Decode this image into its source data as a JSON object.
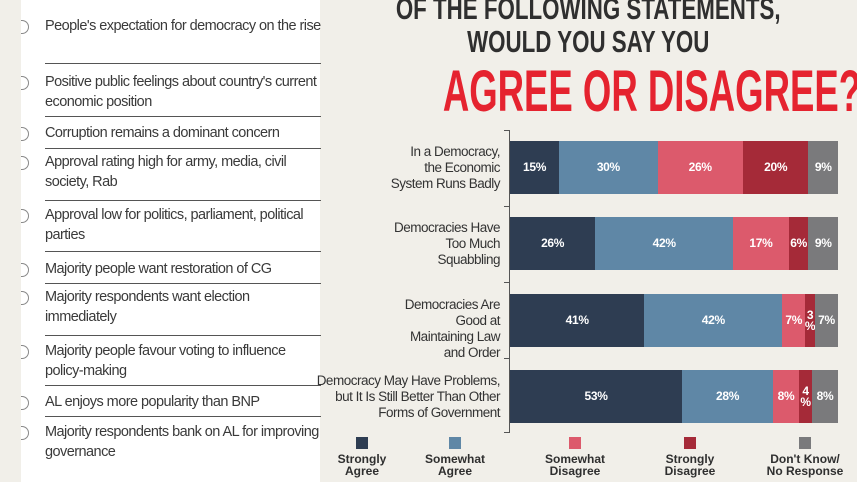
{
  "highlights": [
    "People's expectation for democracy on the rise",
    "Positive public feelings about country's current economic position",
    "Corruption remains a dominant concern",
    "Approval rating high for army, media, civil society, Rab",
    "Approval low for politics, parliament, political parties",
    "Majority people want restoration of CG",
    "Majority respondents want election immediately",
    "Majority people favour voting to influence policy-making",
    "AL enjoys more popularity than BNP",
    "Majority respondents bank on AL for improving governance"
  ],
  "chart_data": {
    "type": "bar",
    "orientation": "horizontal",
    "stacked": true,
    "title_lines": [
      "OF THE FOLLOWING STATEMENTS,",
      "WOULD YOU SAY YOU",
      "AGREE OR DISAGREE?"
    ],
    "categories": [
      "In a Democracy, the Economic System Runs Badly",
      "Democracies Have Too Much Squabbling",
      "Democracies Are Good at Maintaining Law and Order",
      "Democracy May Have Problems, but It Is Still Better Than Other Forms of Government"
    ],
    "series": [
      {
        "name": "Strongly Agree",
        "color": "#2e3d52",
        "values": [
          15,
          26,
          41,
          53
        ]
      },
      {
        "name": "Somewhat Agree",
        "color": "#5f87a6",
        "values": [
          30,
          42,
          42,
          28
        ]
      },
      {
        "name": "Somewhat Disagree",
        "color": "#dc5a6c",
        "values": [
          26,
          17,
          7,
          8
        ]
      },
      {
        "name": "Strongly Disagree",
        "color": "#a52a38",
        "values": [
          20,
          6,
          3,
          4
        ]
      },
      {
        "name": "Don't Know/\nNo Response",
        "color": "#7a7a7c",
        "values": [
          9,
          9,
          7,
          8
        ]
      }
    ],
    "value_suffix": "%",
    "legend_position": "bottom",
    "grid": false
  }
}
